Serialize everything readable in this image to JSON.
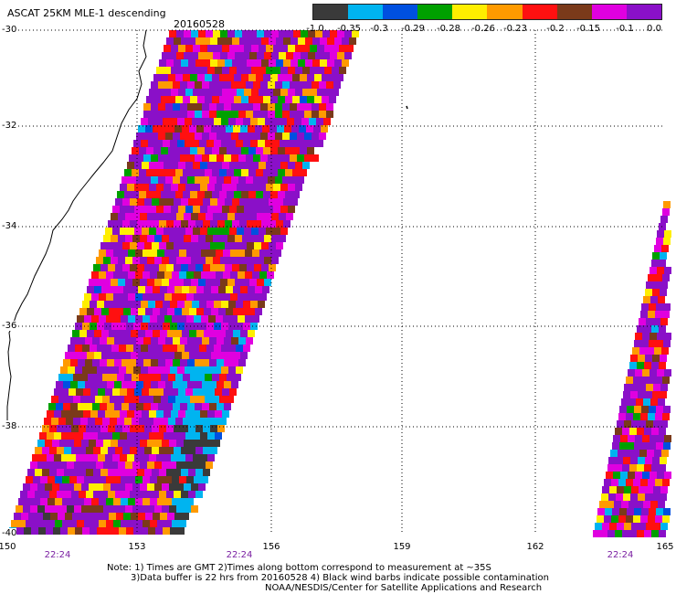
{
  "title": "ASCAT 25KM MLE-1 descending",
  "date": "20160528",
  "legend": {
    "colors": [
      "#3a3a3a",
      "#00b4f0",
      "#0050e0",
      "#00a000",
      "#ffee00",
      "#ff9a00",
      "#ff1010",
      "#7a3a1a",
      "#e000e0",
      "#8a10c8"
    ],
    "labels": [
      "-1.0",
      "-0.35",
      "-0.3",
      "-0.29",
      "-0.28",
      "-0.26",
      "-0.23",
      "-0.2",
      "-0.15",
      "-0.1",
      "0.0"
    ]
  },
  "lat_labels": [
    "-30",
    "-32",
    "-34",
    "-36",
    "-38",
    "-40"
  ],
  "lon_labels": [
    "150",
    "153",
    "156",
    "159",
    "162",
    "165"
  ],
  "time_labels": [
    "22:24",
    "22:24",
    "22:24"
  ],
  "notes": [
    "Note: 1) Times are GMT 2)Times along bottom correspond to measurement at ~35S",
    "3)Data buffer is 22 hrs from 20160528 4) Black wind barbs indicate possible contamination",
    "NOAA/NESDIS/Center for Satellite Applications and Research"
  ]
}
